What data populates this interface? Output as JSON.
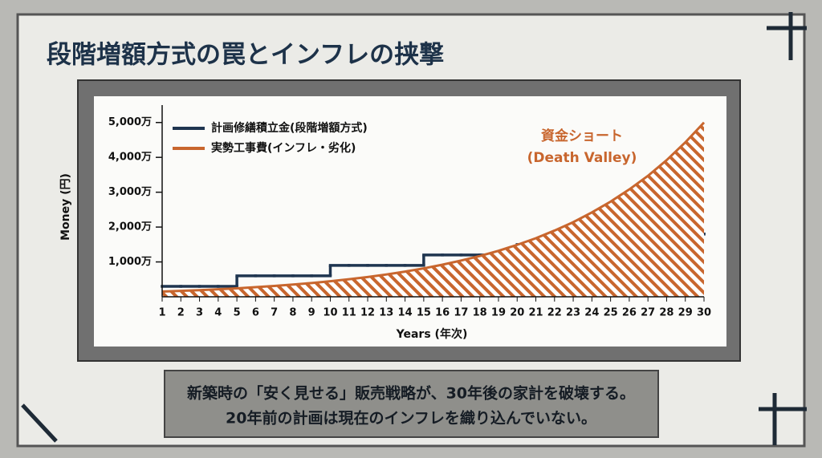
{
  "chart_data": {
    "type": "line",
    "title": "段階増額方式の罠とインフレの挟撃",
    "caption": [
      "新築時の「安く見せる」販売戦略が、30年後の家計を破壊する。",
      "20年前の計画は現在のインフレを織り込んでいない。"
    ],
    "x_label": "Years (年次)",
    "y_label": "Money (円)",
    "annotation": [
      "資金ショート",
      "(Death Valley)"
    ],
    "x": [
      1,
      2,
      3,
      4,
      5,
      6,
      7,
      8,
      9,
      10,
      11,
      12,
      13,
      14,
      15,
      16,
      17,
      18,
      19,
      20,
      21,
      22,
      23,
      24,
      25,
      26,
      27,
      28,
      29,
      30
    ],
    "xlim": [
      1,
      30
    ],
    "xticks": [
      1,
      2,
      3,
      4,
      5,
      6,
      7,
      8,
      9,
      10,
      11,
      12,
      13,
      14,
      15,
      16,
      17,
      18,
      19,
      20,
      21,
      22,
      23,
      24,
      25,
      26,
      27,
      28,
      29,
      30
    ],
    "ylim": [
      0,
      5500
    ],
    "yticks": [
      {
        "value": 1000,
        "label": "1,000万"
      },
      {
        "value": 2000,
        "label": "2,000万"
      },
      {
        "value": 3000,
        "label": "3,000万"
      },
      {
        "value": 4000,
        "label": "4,000万"
      },
      {
        "value": 5000,
        "label": "5,000万"
      }
    ],
    "legend": "upper left",
    "series": [
      {
        "name": "計画修繕積立金(段階増額方式)",
        "color": "#1f3550",
        "step": true,
        "values": [
          300,
          300,
          300,
          300,
          600,
          600,
          600,
          600,
          600,
          900,
          900,
          900,
          900,
          900,
          1200,
          1200,
          1200,
          1200,
          1200,
          1500,
          1500,
          1500,
          1500,
          1500,
          1800,
          1800,
          1800,
          1800,
          1800,
          1800
        ]
      },
      {
        "name": "実勢工事費(インフレ・劣化)",
        "color": "#c8662e",
        "fill": "hatch",
        "values": [
          150,
          169,
          191,
          216,
          243,
          275,
          310,
          350,
          395,
          446,
          503,
          567,
          640,
          723,
          815,
          920,
          1040,
          1170,
          1320,
          1490,
          1680,
          1900,
          2140,
          2420,
          2730,
          3080,
          3470,
          3920,
          4430,
          5000
        ]
      }
    ]
  }
}
